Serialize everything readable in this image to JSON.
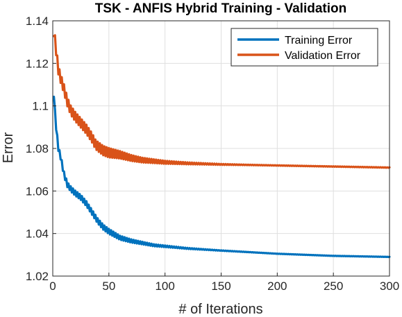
{
  "chart_data": {
    "type": "line",
    "title": "TSK - ANFIS Hybrid Training - Validation",
    "xlabel": "# of Iterations",
    "ylabel": "Error",
    "xlim": [
      0,
      300
    ],
    "ylim": [
      1.02,
      1.14
    ],
    "xticks": [
      0,
      50,
      100,
      150,
      200,
      250,
      300
    ],
    "yticks": [
      1.02,
      1.04,
      1.06,
      1.08,
      1.1,
      1.12,
      1.14
    ],
    "grid": true,
    "legend_position": "top-right",
    "series": [
      {
        "name": "Training Error",
        "color": "#0072BD",
        "x": [
          1,
          2,
          3,
          5,
          7,
          10,
          13,
          16,
          20,
          25,
          30,
          35,
          40,
          45,
          50,
          55,
          60,
          70,
          80,
          90,
          100,
          120,
          150,
          200,
          250,
          300
        ],
        "y": [
          1.1055,
          1.097,
          1.09,
          1.08,
          1.076,
          1.068,
          1.063,
          1.061,
          1.059,
          1.057,
          1.054,
          1.05,
          1.046,
          1.043,
          1.041,
          1.0395,
          1.038,
          1.0365,
          1.0355,
          1.0345,
          1.034,
          1.033,
          1.032,
          1.0305,
          1.0295,
          1.029
        ],
        "oscillation": 0.0012
      },
      {
        "name": "Validation Error",
        "color": "#D95319",
        "x": [
          1,
          2,
          3,
          5,
          7,
          10,
          13,
          16,
          20,
          25,
          30,
          35,
          38,
          40,
          45,
          50,
          55,
          60,
          70,
          80,
          90,
          100,
          120,
          150,
          200,
          250,
          300
        ],
        "y": [
          1.135,
          1.131,
          1.126,
          1.117,
          1.113,
          1.108,
          1.102,
          1.098,
          1.095,
          1.092,
          1.089,
          1.085,
          1.082,
          1.081,
          1.079,
          1.078,
          1.0775,
          1.077,
          1.0755,
          1.0745,
          1.074,
          1.0735,
          1.073,
          1.0725,
          1.072,
          1.0715,
          1.071
        ],
        "oscillation": 0.0022
      }
    ]
  }
}
